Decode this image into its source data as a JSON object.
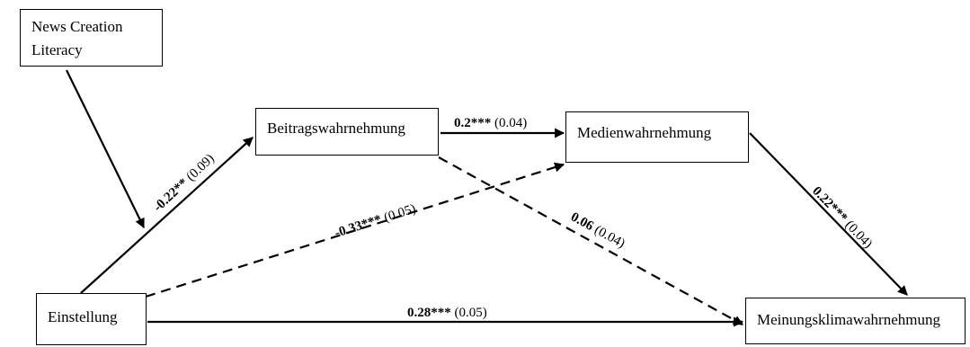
{
  "nodes": {
    "news_creation_literacy": "News Creation Literacy",
    "beitragswahrnehmung": "Beitragswahrnehmung",
    "medienwahrnehmung": "Medienwahrnehmung",
    "einstellung": "Einstellung",
    "meinungsklimawahrnehmung": "Meinungsklimawahrnehmung"
  },
  "edges": [
    {
      "from": "einstellung",
      "to": "beitragswahrnehmung",
      "coef": "-0.22**",
      "se": "(0.09)",
      "style": "solid"
    },
    {
      "from": "beitragswahrnehmung",
      "to": "medienwahrnehmung",
      "coef": "0.2***",
      "se": "(0.04)",
      "style": "solid"
    },
    {
      "from": "einstellung",
      "to": "medienwahrnehmung",
      "coef": "-0.33***",
      "se": "(0.05)",
      "style": "dashed"
    },
    {
      "from": "beitragswahrnehmung",
      "to": "meinungsklimawahrnehmung",
      "coef": "0.06",
      "se": "(0.04)",
      "style": "dashed"
    },
    {
      "from": "medienwahrnehmung",
      "to": "meinungsklimawahrnehmung",
      "coef": "0.22***",
      "se": "(0.04)",
      "style": "solid"
    },
    {
      "from": "einstellung",
      "to": "meinungsklimawahrnehmung",
      "coef": "0.28***",
      "se": "(0.05)",
      "style": "solid"
    },
    {
      "from": "news_creation_literacy",
      "to": "einstellung-beitragswahrnehmung-path",
      "coef": "",
      "se": "",
      "style": "solid"
    }
  ]
}
